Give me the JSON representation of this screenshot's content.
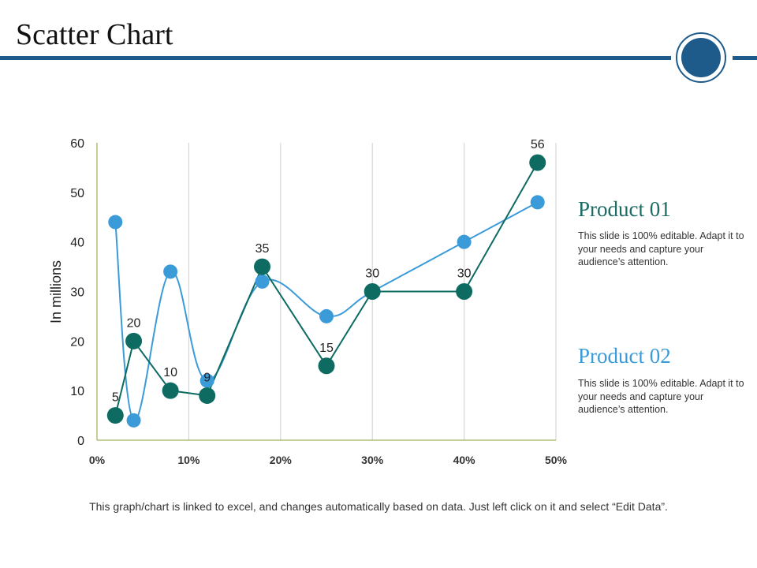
{
  "slide": {
    "title": "Scatter Chart",
    "accent_color": "#1f5b8a",
    "footer": "This graph/chart is linked to excel, and changes automatically based on data. Just left click on it and select “Edit Data”."
  },
  "legend": [
    {
      "title": "Product 01",
      "color": "#1a6b63",
      "description": "This slide is 100% editable. Adapt it to your needs and capture your audience’s attention."
    },
    {
      "title": "Product 02",
      "color": "#3a9bd8",
      "description": "This slide is 100% editable. Adapt it to your needs and capture your audience’s attention."
    }
  ],
  "chart_data": {
    "type": "scatter",
    "title": "",
    "xlabel": "",
    "ylabel": "In millions",
    "xlim": [
      0,
      50
    ],
    "ylim": [
      0,
      60
    ],
    "x_ticks": [
      0,
      10,
      20,
      30,
      40,
      50
    ],
    "x_tick_labels": [
      "0%",
      "10%",
      "20%",
      "30%",
      "40%",
      "50%"
    ],
    "y_ticks": [
      0,
      10,
      20,
      30,
      40,
      50,
      60
    ],
    "y_tick_labels": [
      "0",
      "10",
      "20",
      "30",
      "40",
      "50",
      "60"
    ],
    "grid": "vertical",
    "series": [
      {
        "name": "Product 01",
        "color": "#0e6b62",
        "line": "straight",
        "show_labels": true,
        "points": [
          {
            "x": 2,
            "y": 5,
            "label": "5"
          },
          {
            "x": 4,
            "y": 20,
            "label": "20"
          },
          {
            "x": 8,
            "y": 10,
            "label": "10"
          },
          {
            "x": 12,
            "y": 9,
            "label": "9"
          },
          {
            "x": 18,
            "y": 35,
            "label": "35"
          },
          {
            "x": 25,
            "y": 15,
            "label": "15"
          },
          {
            "x": 30,
            "y": 30,
            "label": "30"
          },
          {
            "x": 40,
            "y": 30,
            "label": "30"
          },
          {
            "x": 48,
            "y": 56,
            "label": "56"
          }
        ]
      },
      {
        "name": "Product 02",
        "color": "#3a9bd8",
        "line": "smooth",
        "show_labels": false,
        "points": [
          {
            "x": 2,
            "y": 44
          },
          {
            "x": 4,
            "y": 4
          },
          {
            "x": 8,
            "y": 34
          },
          {
            "x": 12,
            "y": 12
          },
          {
            "x": 18,
            "y": 32
          },
          {
            "x": 25,
            "y": 25
          },
          {
            "x": 30,
            "y": 30
          },
          {
            "x": 40,
            "y": 40
          },
          {
            "x": 48,
            "y": 48
          }
        ]
      }
    ]
  }
}
